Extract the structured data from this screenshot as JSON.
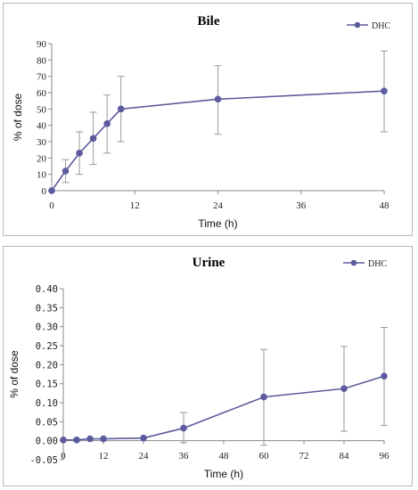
{
  "chart_data": [
    {
      "type": "line",
      "title": "Bile",
      "xlabel": "Time (h)",
      "ylabel": "% of dose",
      "xlim": [
        0,
        48
      ],
      "ylim": [
        0,
        90
      ],
      "xticks": [
        "0",
        "12",
        "24",
        "36",
        "48"
      ],
      "yticks": [
        "0",
        "10",
        "20",
        "30",
        "40",
        "50",
        "60",
        "70",
        "80",
        "90"
      ],
      "legend_position": "top-right",
      "grid": false,
      "series": [
        {
          "name": "DHC",
          "color": "#5b5b9e",
          "x": [
            0,
            2,
            4,
            6,
            8,
            10,
            24,
            48
          ],
          "y": [
            0,
            12,
            23,
            32,
            41,
            50,
            56,
            61
          ],
          "err_low": [
            0,
            5,
            10,
            16,
            23,
            30,
            34.5,
            36
          ],
          "err_high": [
            0,
            19,
            36,
            48,
            58.5,
            70,
            76.5,
            85.5
          ]
        }
      ]
    },
    {
      "type": "line",
      "title": "Urine",
      "xlabel": "Time (h)",
      "ylabel": "% of dose",
      "xlim": [
        0,
        96
      ],
      "ylim": [
        -0.05,
        0.4
      ],
      "xticks": [
        "0",
        "12",
        "24",
        "36",
        "48",
        "60",
        "72",
        "84",
        "96"
      ],
      "yticks": [
        "-0.05",
        "0.00",
        "0.05",
        "0.10",
        "0.15",
        "0.20",
        "0.25",
        "0.30",
        "0.35",
        "0.40"
      ],
      "legend_position": "top-right",
      "grid": false,
      "series": [
        {
          "name": "DHC",
          "color": "#5b5b9e",
          "x": [
            0,
            4,
            8,
            12,
            24,
            36,
            60,
            84,
            96
          ],
          "y": [
            0.002,
            0.002,
            0.005,
            0.005,
            0.007,
            0.033,
            0.115,
            0.137,
            0.17
          ],
          "err_low": [
            0.002,
            0.002,
            0.005,
            0.005,
            0.007,
            -0.005,
            -0.012,
            0.025,
            0.04
          ],
          "err_high": [
            0.002,
            0.002,
            0.005,
            0.005,
            0.007,
            0.074,
            0.24,
            0.248,
            0.298
          ]
        }
      ]
    }
  ]
}
